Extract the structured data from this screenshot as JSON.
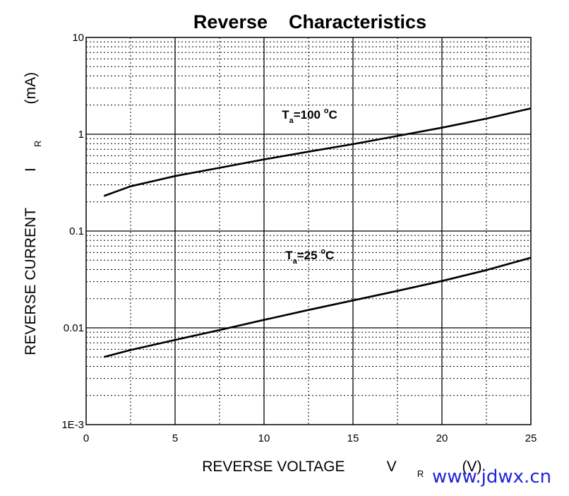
{
  "chart_data": {
    "type": "line",
    "title": "Reverse    Characteristics",
    "xlabel": "REVERSE VOLTAGE",
    "xlabel_symbol": "V",
    "xlabel_sub": "R",
    "xlabel_unit": "(V)",
    "ylabel": "REVERSE CURRENT",
    "ylabel_symbol": "I",
    "ylabel_sub": "R",
    "ylabel_unit": "(mA)",
    "xlim": [
      0,
      25
    ],
    "ylim": [
      0.001,
      10
    ],
    "yscale": "log",
    "grid": true,
    "x_ticks": [
      {
        "v": 0,
        "label": "0"
      },
      {
        "v": 5,
        "label": "5"
      },
      {
        "v": 10,
        "label": "10"
      },
      {
        "v": 15,
        "label": "15"
      },
      {
        "v": 20,
        "label": "20"
      },
      {
        "v": 25,
        "label": "25"
      }
    ],
    "y_ticks": [
      {
        "v": 0.001,
        "label": "1E-3"
      },
      {
        "v": 0.01,
        "label": "0.01"
      },
      {
        "v": 0.1,
        "label": "0.1"
      },
      {
        "v": 1,
        "label": "1"
      },
      {
        "v": 10,
        "label": "10"
      }
    ],
    "series": [
      {
        "label_T": "T",
        "label_sub": "a",
        "label_rest": "=100 ",
        "label_deg": "o",
        "label_unit": "C",
        "label_at": [
          11,
          1.45
        ],
        "x": [
          1,
          2.5,
          5,
          7.5,
          10,
          12.5,
          15,
          17.5,
          20,
          22.5,
          25
        ],
        "y": [
          0.23,
          0.29,
          0.37,
          0.45,
          0.55,
          0.66,
          0.79,
          0.96,
          1.17,
          1.45,
          1.85
        ]
      },
      {
        "label_T": "T",
        "label_sub": "a",
        "label_rest": "=25 ",
        "label_deg": "o",
        "label_unit": "C",
        "label_at": [
          11.2,
          0.051
        ],
        "x": [
          1,
          2.5,
          5,
          7.5,
          10,
          12.5,
          15,
          17.5,
          20,
          22.5,
          25
        ],
        "y": [
          0.005,
          0.0059,
          0.0075,
          0.0095,
          0.0121,
          0.0153,
          0.0192,
          0.0241,
          0.0305,
          0.0395,
          0.053
        ]
      }
    ]
  },
  "watermark": "www.jdwx.cn"
}
